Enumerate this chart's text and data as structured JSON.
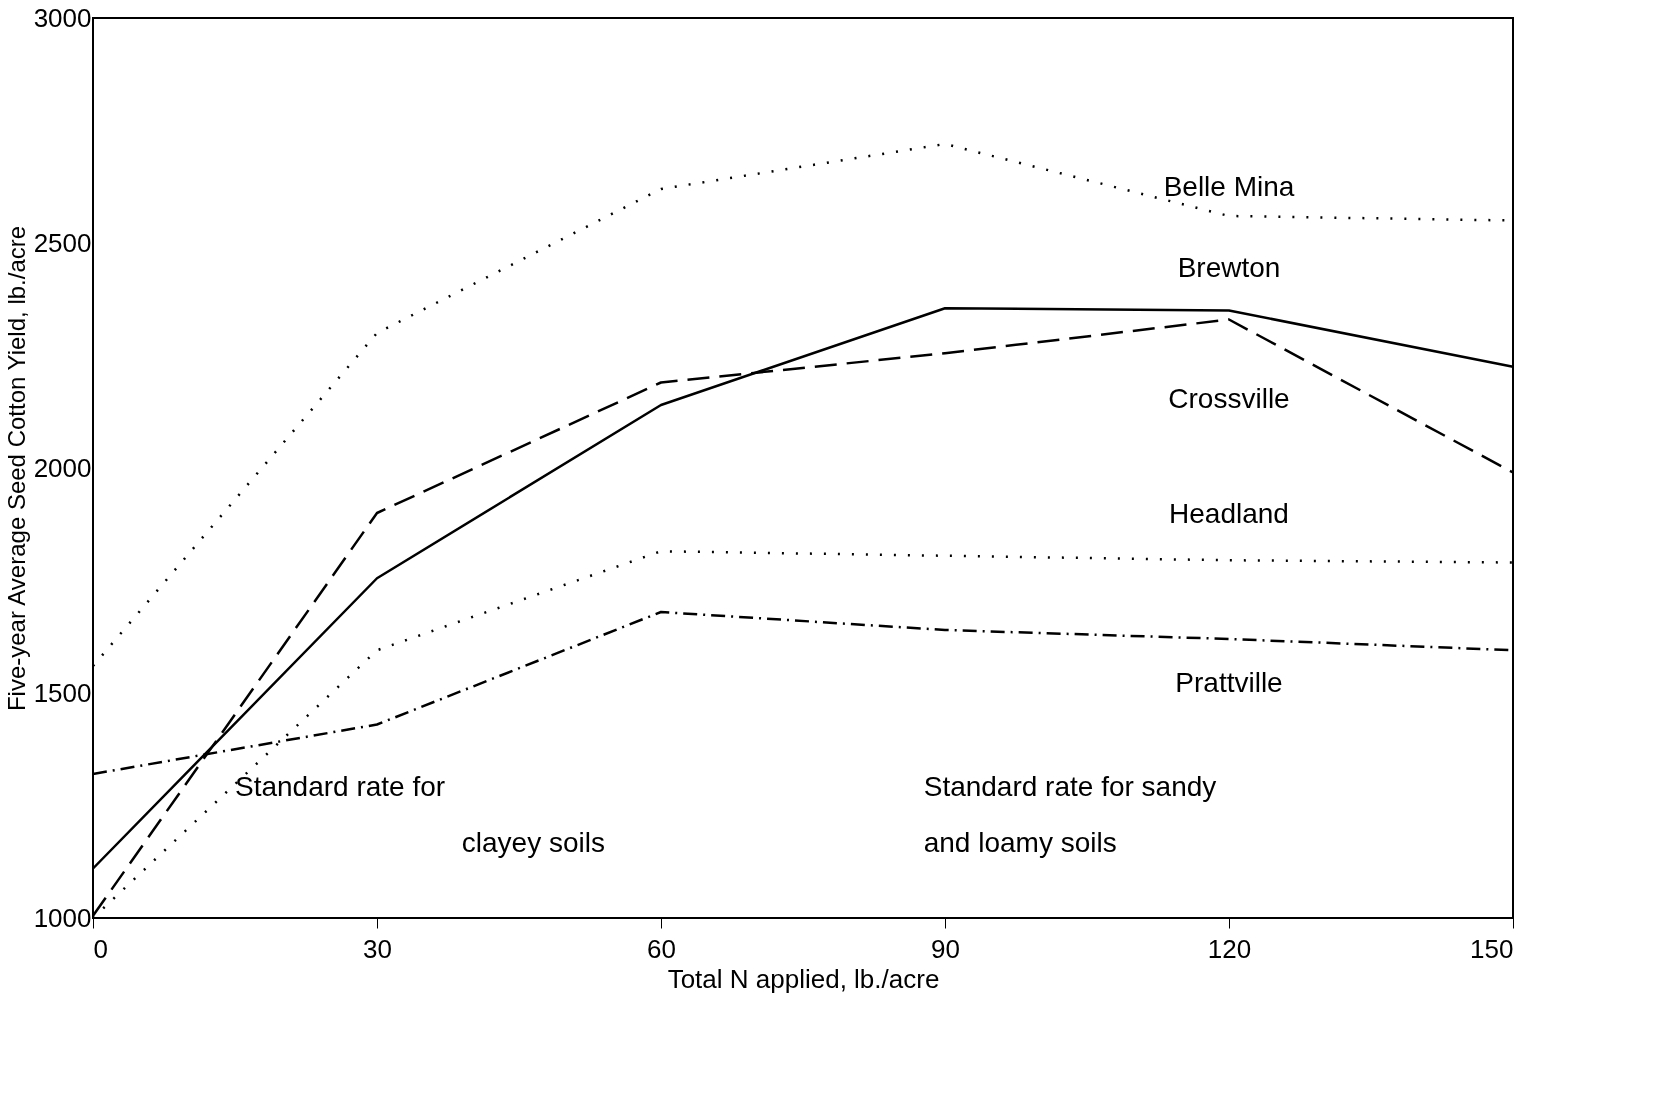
{
  "chart_data": {
    "type": "line",
    "xlabel": "Total N applied, lb./acre",
    "ylabel": "Five-year Average Seed Cotton Yield, lb./acre",
    "x": [
      0,
      30,
      60,
      90,
      120,
      150
    ],
    "series": [
      {
        "name": "Belle Mina",
        "color": "#000000",
        "line_style": "dotted",
        "values": [
          1560,
          2300,
          2620,
          2720,
          2560,
          2550
        ]
      },
      {
        "name": "Brewton",
        "color": "#000000",
        "line_style": "solid",
        "values": [
          1110,
          1755,
          2140,
          2355,
          2350,
          2225
        ]
      },
      {
        "name": "Crossville",
        "color": "#000000",
        "line_style": "dashed",
        "values": [
          1005,
          1900,
          2190,
          2255,
          2330,
          1990
        ]
      },
      {
        "name": "Headland",
        "color": "#000000",
        "line_style": "dotted",
        "values": [
          1000,
          1595,
          1815,
          1805,
          1795,
          1790
        ]
      },
      {
        "name": "Prattville",
        "color": "#000000",
        "line_style": "dashdot",
        "values": [
          1320,
          1430,
          1680,
          1640,
          1620,
          1595
        ]
      }
    ],
    "annotations": [
      "Standard rate for\nclayey soils",
      "Standard rate for sandy\nand loamy soils"
    ],
    "xlim": [
      0,
      150
    ],
    "xticks": [
      0,
      30,
      60,
      90,
      120,
      150
    ],
    "ylim": [
      1000,
      3000
    ],
    "yticks": [
      1000,
      1500,
      2000,
      2500,
      3000
    ],
    "grid": false,
    "marker": "none"
  }
}
